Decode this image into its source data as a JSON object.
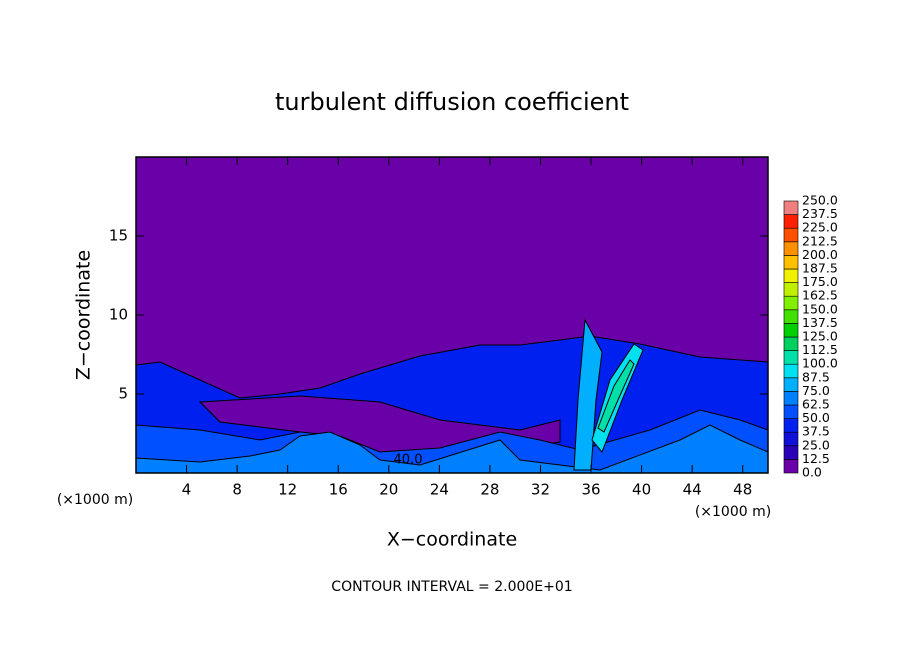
{
  "chart_data": {
    "type": "contour",
    "title": "turbulent diffusion coefficient",
    "xlabel": "X−coordinate",
    "ylabel": "Z−coordinate",
    "axis_unit": "(×1000 m)",
    "footnote": "CONTOUR INTERVAL = 2.000E+01",
    "xlim": [
      0,
      50
    ],
    "ylim": [
      0,
      20
    ],
    "xticks": [
      4,
      8,
      12,
      16,
      20,
      24,
      28,
      32,
      36,
      40,
      44,
      48
    ],
    "yticks": [
      5,
      10,
      15
    ],
    "levels": [
      {
        "value": 0,
        "label": "0.0"
      },
      {
        "value": 12.5,
        "label": "12.5"
      },
      {
        "value": 25,
        "label": "25.0"
      },
      {
        "value": 37.5,
        "label": "37.5"
      },
      {
        "value": 50,
        "label": "50.0"
      },
      {
        "value": 62.5,
        "label": "62.5"
      },
      {
        "value": 75,
        "label": "75.0"
      },
      {
        "value": 87.5,
        "label": "87.5"
      },
      {
        "value": 100,
        "label": "100.0"
      },
      {
        "value": 112.5,
        "label": "112.5"
      },
      {
        "value": 125,
        "label": "125.0"
      },
      {
        "value": 137.5,
        "label": "137.5"
      },
      {
        "value": 150,
        "label": "150.0"
      },
      {
        "value": 162.5,
        "label": "162.5"
      },
      {
        "value": 175,
        "label": "175.0"
      },
      {
        "value": 187.5,
        "label": "187.5"
      },
      {
        "value": 200,
        "label": "200.0"
      },
      {
        "value": 212.5,
        "label": "212.5"
      },
      {
        "value": 225,
        "label": "225.0"
      },
      {
        "value": 237.5,
        "label": "237.5"
      },
      {
        "value": 250,
        "label": "250.0"
      }
    ],
    "colors": [
      "#6a00a8",
      "#2a00b8",
      "#1010d8",
      "#0020f0",
      "#0050ff",
      "#0080ff",
      "#00b0ff",
      "#00e0f0",
      "#00e0a8",
      "#00d060",
      "#00d000",
      "#40e000",
      "#80f000",
      "#c0f000",
      "#f0f000",
      "#ffc000",
      "#ff9000",
      "#ff5000",
      "#ff2000",
      "#f08080"
    ],
    "contour_labels": [
      {
        "value": 40,
        "label": "40.0"
      }
    ]
  }
}
